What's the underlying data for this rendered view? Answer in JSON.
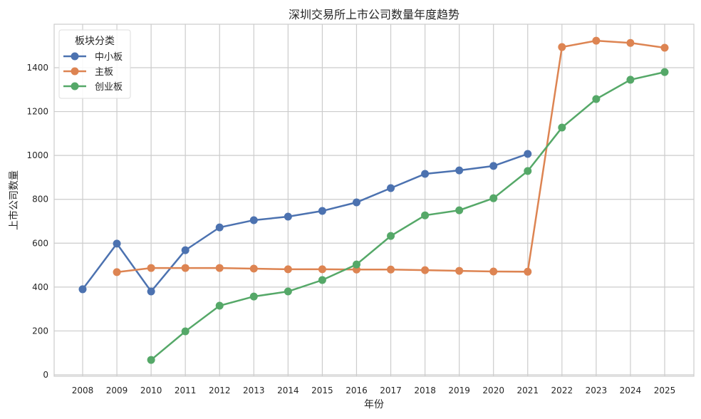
{
  "chart_data": {
    "type": "line",
    "title": "深圳交易所上市公司数量年度趋势",
    "xlabel": "年份",
    "ylabel": "上市公司数量",
    "ylim": [
      0,
      1580
    ],
    "yticks": [
      0,
      200,
      400,
      600,
      800,
      1000,
      1200,
      1400
    ],
    "grid": true,
    "legend": {
      "title": "板块分类",
      "placement": "top-left"
    },
    "categories": [
      "2008",
      "2009",
      "2010",
      "2011",
      "2012",
      "2013",
      "2014",
      "2015",
      "2016",
      "2017",
      "2018",
      "2019",
      "2020",
      "2021",
      "2022",
      "2023",
      "2024",
      "2025"
    ],
    "series": [
      {
        "name": "中小板",
        "color": "#4c72b0",
        "values": [
          390,
          598,
          380,
          568,
          672,
          705,
          721,
          747,
          786,
          851,
          916,
          932,
          952,
          1007,
          null,
          null,
          null,
          null
        ]
      },
      {
        "name": "主板",
        "color": "#dd8452",
        "values": [
          null,
          468,
          487,
          487,
          487,
          484,
          481,
          481,
          480,
          480,
          477,
          474,
          471,
          470,
          1494,
          1523,
          1513,
          1491
        ]
      },
      {
        "name": "创业板",
        "color": "#55a868",
        "values": [
          null,
          null,
          68,
          198,
          315,
          357,
          380,
          432,
          503,
          633,
          727,
          750,
          805,
          929,
          1127,
          1257,
          1345,
          1380
        ]
      }
    ]
  }
}
